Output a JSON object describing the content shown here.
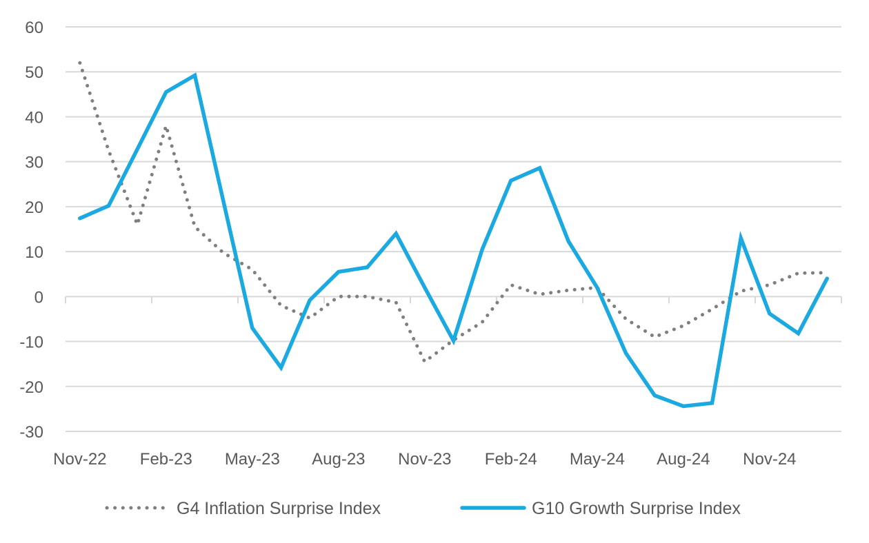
{
  "chart_data": {
    "type": "line",
    "title": "",
    "xlabel": "",
    "ylabel": "",
    "ylim": [
      -30,
      60
    ],
    "yticks": [
      60,
      50,
      40,
      30,
      20,
      10,
      0,
      -10,
      -20,
      -30
    ],
    "grid": true,
    "legend_position": "bottom",
    "x": [
      "Nov-22",
      "Dec-22",
      "Jan-23",
      "Feb-23",
      "Mar-23",
      "Apr-23",
      "May-23",
      "Jun-23",
      "Jul-23",
      "Aug-23",
      "Sep-23",
      "Oct-23",
      "Nov-23",
      "Dec-23",
      "Jan-24",
      "Feb-24",
      "Mar-24",
      "Apr-24",
      "May-24",
      "Jun-24",
      "Jul-24",
      "Aug-24",
      "Sep-24",
      "Oct-24",
      "Nov-24",
      "Dec-24",
      "Jan-25"
    ],
    "xtick_labels": [
      "Nov-22",
      "Feb-23",
      "May-23",
      "Aug-23",
      "Nov-23",
      "Feb-24",
      "May-24",
      "Aug-24",
      "Nov-24"
    ],
    "series": [
      {
        "name": "G4 Inflation Surprise Index",
        "style": "dotted",
        "color": "#7f7f7f",
        "values": [
          52,
          32.5,
          16,
          38,
          15.5,
          9.7,
          6,
          -2,
          -4.8,
          0,
          0,
          -1.3,
          -14.5,
          -9.7,
          -5.7,
          2.6,
          0.5,
          1.4,
          2,
          -5,
          -9,
          -6.5,
          -2.8,
          1.2,
          2.6,
          5.2,
          5.3
        ]
      },
      {
        "name": "G10 Growth Surprise Index",
        "style": "solid",
        "color": "#1aa9e0",
        "values": [
          17.4,
          20.2,
          32.8,
          45.5,
          49.2,
          21,
          -7,
          -15.8,
          -0.8,
          5.5,
          6.5,
          14,
          2,
          -9.8,
          10.5,
          25.8,
          28.6,
          12.3,
          2,
          -12.6,
          -22,
          -24.4,
          -23.7,
          13,
          -3.8,
          -8.2,
          4
        ]
      }
    ]
  },
  "colors": {
    "grid": "#d9d9d9",
    "text": "#595959"
  }
}
